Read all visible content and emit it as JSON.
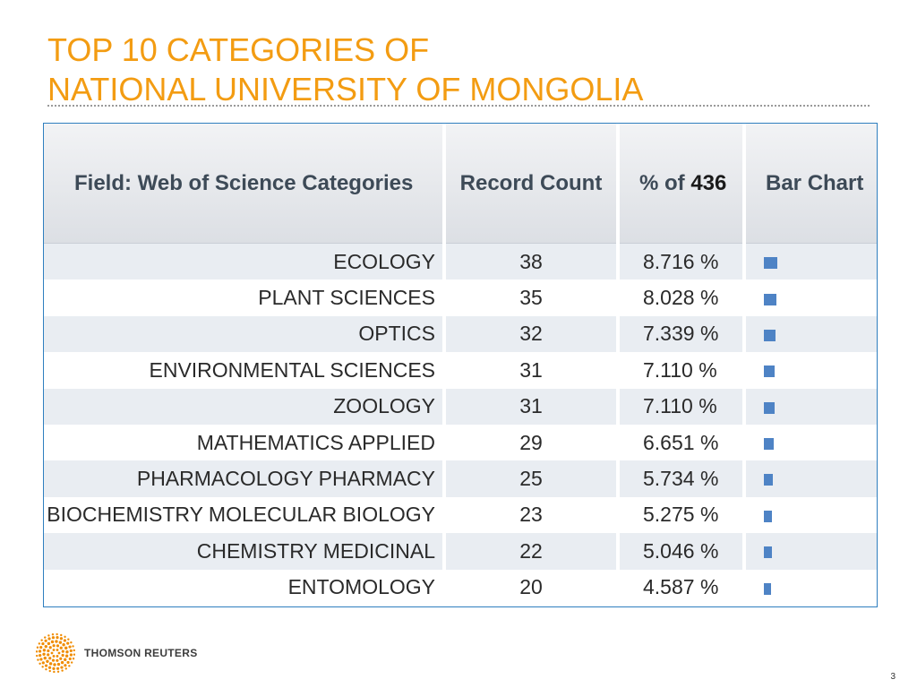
{
  "slide": {
    "title_line1": "TOP 10 CATEGORIES OF",
    "title_line2": "NATIONAL UNIVERSITY OF MONGOLIA",
    "page_number": "3"
  },
  "table": {
    "headers": {
      "field": "Field: Web of Science Categories",
      "count": "Record Count",
      "pct_prefix": "% of ",
      "pct_total": "436",
      "bar": "Bar Chart"
    },
    "rows": [
      {
        "field": "ECOLOGY",
        "count": "38",
        "pct": "8.716 %",
        "value": 8.716
      },
      {
        "field": "PLANT SCIENCES",
        "count": "35",
        "pct": "8.028 %",
        "value": 8.028
      },
      {
        "field": "OPTICS",
        "count": "32",
        "pct": "7.339 %",
        "value": 7.339
      },
      {
        "field": "ENVIRONMENTAL SCIENCES",
        "count": "31",
        "pct": "7.110 %",
        "value": 7.11
      },
      {
        "field": "ZOOLOGY",
        "count": "31",
        "pct": "7.110 %",
        "value": 7.11
      },
      {
        "field": "MATHEMATICS APPLIED",
        "count": "29",
        "pct": "6.651 %",
        "value": 6.651
      },
      {
        "field": "PHARMACOLOGY PHARMACY",
        "count": "25",
        "pct": "5.734 %",
        "value": 5.734
      },
      {
        "field": "BIOCHEMISTRY MOLECULAR BIOLOGY",
        "count": "23",
        "pct": "5.275 %",
        "value": 5.275
      },
      {
        "field": "CHEMISTRY MEDICINAL",
        "count": "22",
        "pct": "5.046 %",
        "value": 5.046
      },
      {
        "field": "ENTOMOLOGY",
        "count": "20",
        "pct": "4.587 %",
        "value": 4.587
      }
    ]
  },
  "footer": {
    "logo_text": "THOMSON REUTERS",
    "logo_icon": "thomson-reuters-dot-sphere-icon"
  },
  "colors": {
    "title": "#f39c12",
    "bar": "#4e83c5",
    "table_border": "#2f7fbf",
    "row_stripe": "#e9edf2",
    "logo_orange": "#f08c00"
  }
}
